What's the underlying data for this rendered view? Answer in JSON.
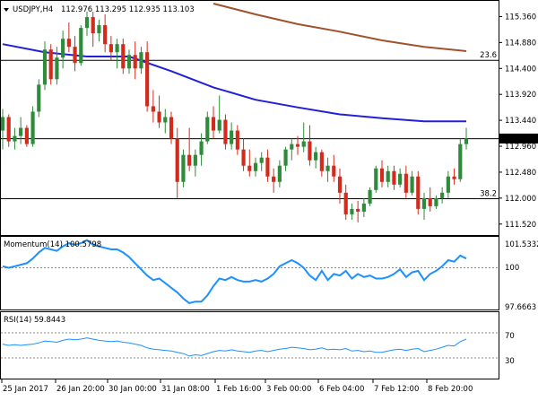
{
  "header": {
    "symbol": "USDJPY,H4",
    "ohlc": "112.976 113.295 112.935 113.103"
  },
  "colors": {
    "up": "#2e8b3a",
    "down": "#d42a1c",
    "ma_fast": "#2020d8",
    "ma_slow": "#a0522d",
    "indicator_line": "#1e90ff",
    "price_tag_bg": "#000000",
    "price_tag_text": "#ffffff"
  },
  "chart_data": [
    {
      "type": "candlestick",
      "title": "USDJPY,H4",
      "ylim": [
        111.35,
        115.6
      ],
      "y_ticks": [
        "115.360",
        "114.880",
        "114.400",
        "113.920",
        "113.440",
        "112.960",
        "112.480",
        "112.000",
        "111.520"
      ],
      "last_price": "113.103",
      "levels": [
        {
          "label": "23.6",
          "value": 114.55
        },
        {
          "label": "38.2",
          "value": 111.99
        }
      ],
      "reference_line": 113.1,
      "candles": [
        {
          "o": 113.25,
          "h": 113.65,
          "l": 112.9,
          "c": 113.5
        },
        {
          "o": 113.5,
          "h": 113.55,
          "l": 112.95,
          "c": 113.05
        },
        {
          "o": 113.05,
          "h": 113.3,
          "l": 112.9,
          "c": 113.15
        },
        {
          "o": 113.15,
          "h": 113.5,
          "l": 113.0,
          "c": 113.3
        },
        {
          "o": 113.3,
          "h": 113.35,
          "l": 112.95,
          "c": 113.0
        },
        {
          "o": 113.0,
          "h": 113.7,
          "l": 112.95,
          "c": 113.6
        },
        {
          "o": 113.6,
          "h": 114.2,
          "l": 113.5,
          "c": 114.1
        },
        {
          "o": 114.1,
          "h": 114.9,
          "l": 114.0,
          "c": 114.75
        },
        {
          "o": 114.75,
          "h": 114.85,
          "l": 114.1,
          "c": 114.2
        },
        {
          "o": 114.2,
          "h": 114.8,
          "l": 114.1,
          "c": 114.6
        },
        {
          "o": 114.6,
          "h": 115.1,
          "l": 114.4,
          "c": 114.95
        },
        {
          "o": 114.95,
          "h": 115.25,
          "l": 114.7,
          "c": 114.8
        },
        {
          "o": 114.8,
          "h": 115.0,
          "l": 114.35,
          "c": 114.5
        },
        {
          "o": 114.5,
          "h": 115.2,
          "l": 114.45,
          "c": 115.15
        },
        {
          "o": 115.15,
          "h": 115.45,
          "l": 115.0,
          "c": 115.35
        },
        {
          "o": 115.35,
          "h": 115.45,
          "l": 114.8,
          "c": 115.05
        },
        {
          "o": 115.05,
          "h": 115.3,
          "l": 114.9,
          "c": 115.2
        },
        {
          "o": 115.2,
          "h": 115.4,
          "l": 114.7,
          "c": 114.85
        },
        {
          "o": 114.85,
          "h": 115.0,
          "l": 114.55,
          "c": 114.7
        },
        {
          "o": 114.7,
          "h": 114.95,
          "l": 114.4,
          "c": 114.85
        },
        {
          "o": 114.85,
          "h": 114.95,
          "l": 114.3,
          "c": 114.4
        },
        {
          "o": 114.4,
          "h": 114.75,
          "l": 114.3,
          "c": 114.65
        },
        {
          "o": 114.65,
          "h": 114.9,
          "l": 114.2,
          "c": 114.4
        },
        {
          "o": 114.4,
          "h": 114.8,
          "l": 114.3,
          "c": 114.7
        },
        {
          "o": 114.7,
          "h": 114.9,
          "l": 113.6,
          "c": 113.7
        },
        {
          "o": 113.7,
          "h": 114.0,
          "l": 113.4,
          "c": 113.6
        },
        {
          "o": 113.6,
          "h": 113.9,
          "l": 113.3,
          "c": 113.4
        },
        {
          "o": 113.4,
          "h": 113.65,
          "l": 113.2,
          "c": 113.5
        },
        {
          "o": 113.5,
          "h": 113.6,
          "l": 113.0,
          "c": 113.1
        },
        {
          "o": 113.1,
          "h": 113.3,
          "l": 112.0,
          "c": 112.3
        },
        {
          "o": 112.3,
          "h": 112.9,
          "l": 112.2,
          "c": 112.8
        },
        {
          "o": 112.8,
          "h": 113.3,
          "l": 112.5,
          "c": 112.6
        },
        {
          "o": 112.6,
          "h": 112.9,
          "l": 112.4,
          "c": 112.8
        },
        {
          "o": 112.8,
          "h": 113.2,
          "l": 112.6,
          "c": 113.05
        },
        {
          "o": 113.05,
          "h": 113.6,
          "l": 113.0,
          "c": 113.5
        },
        {
          "o": 113.5,
          "h": 113.7,
          "l": 113.1,
          "c": 113.25
        },
        {
          "o": 113.25,
          "h": 113.9,
          "l": 113.2,
          "c": 113.45
        },
        {
          "o": 113.45,
          "h": 113.55,
          "l": 112.9,
          "c": 113.0
        },
        {
          "o": 113.0,
          "h": 113.4,
          "l": 112.9,
          "c": 113.25
        },
        {
          "o": 113.25,
          "h": 113.35,
          "l": 112.8,
          "c": 112.9
        },
        {
          "o": 112.9,
          "h": 113.1,
          "l": 112.5,
          "c": 112.6
        },
        {
          "o": 112.6,
          "h": 112.9,
          "l": 112.4,
          "c": 112.5
        },
        {
          "o": 112.5,
          "h": 112.75,
          "l": 112.4,
          "c": 112.65
        },
        {
          "o": 112.65,
          "h": 112.85,
          "l": 112.5,
          "c": 112.75
        },
        {
          "o": 112.75,
          "h": 112.9,
          "l": 112.3,
          "c": 112.4
        },
        {
          "o": 112.4,
          "h": 112.55,
          "l": 112.1,
          "c": 112.3
        },
        {
          "o": 112.3,
          "h": 112.7,
          "l": 112.2,
          "c": 112.6
        },
        {
          "o": 112.6,
          "h": 112.95,
          "l": 112.5,
          "c": 112.9
        },
        {
          "o": 112.9,
          "h": 113.1,
          "l": 112.7,
          "c": 113.0
        },
        {
          "o": 113.0,
          "h": 113.15,
          "l": 112.8,
          "c": 112.95
        },
        {
          "o": 112.95,
          "h": 113.4,
          "l": 112.85,
          "c": 113.05
        },
        {
          "o": 113.05,
          "h": 113.35,
          "l": 112.6,
          "c": 112.7
        },
        {
          "o": 112.7,
          "h": 112.95,
          "l": 112.55,
          "c": 112.85
        },
        {
          "o": 112.85,
          "h": 112.9,
          "l": 112.4,
          "c": 112.5
        },
        {
          "o": 112.5,
          "h": 112.75,
          "l": 112.3,
          "c": 112.6
        },
        {
          "o": 112.6,
          "h": 112.8,
          "l": 112.3,
          "c": 112.4
        },
        {
          "o": 112.4,
          "h": 112.55,
          "l": 111.9,
          "c": 112.1
        },
        {
          "o": 112.1,
          "h": 112.25,
          "l": 111.6,
          "c": 111.7
        },
        {
          "o": 111.7,
          "h": 111.9,
          "l": 111.6,
          "c": 111.8
        },
        {
          "o": 111.8,
          "h": 111.95,
          "l": 111.55,
          "c": 111.75
        },
        {
          "o": 111.75,
          "h": 112.0,
          "l": 111.65,
          "c": 111.9
        },
        {
          "o": 111.9,
          "h": 112.2,
          "l": 111.85,
          "c": 112.15
        },
        {
          "o": 112.15,
          "h": 112.6,
          "l": 112.1,
          "c": 112.55
        },
        {
          "o": 112.55,
          "h": 112.7,
          "l": 112.2,
          "c": 112.3
        },
        {
          "o": 112.3,
          "h": 112.6,
          "l": 112.2,
          "c": 112.5
        },
        {
          "o": 112.5,
          "h": 112.6,
          "l": 112.15,
          "c": 112.25
        },
        {
          "o": 112.25,
          "h": 112.55,
          "l": 112.2,
          "c": 112.45
        },
        {
          "o": 112.45,
          "h": 112.6,
          "l": 112.0,
          "c": 112.1
        },
        {
          "o": 112.1,
          "h": 112.5,
          "l": 112.05,
          "c": 112.4
        },
        {
          "o": 112.4,
          "h": 112.5,
          "l": 111.7,
          "c": 111.8
        },
        {
          "o": 111.8,
          "h": 112.1,
          "l": 111.6,
          "c": 112.0
        },
        {
          "o": 112.0,
          "h": 112.2,
          "l": 111.75,
          "c": 111.85
        },
        {
          "o": 111.85,
          "h": 112.05,
          "l": 111.8,
          "c": 112.0
        },
        {
          "o": 112.0,
          "h": 112.2,
          "l": 111.9,
          "c": 112.1
        },
        {
          "o": 112.1,
          "h": 112.5,
          "l": 112.0,
          "c": 112.4
        },
        {
          "o": 112.4,
          "h": 112.55,
          "l": 112.25,
          "c": 112.35
        },
        {
          "o": 112.35,
          "h": 113.1,
          "l": 112.3,
          "c": 113.0
        },
        {
          "o": 113.0,
          "h": 113.3,
          "l": 112.9,
          "c": 113.1
        }
      ],
      "ma_fast": [
        [
          0,
          114.85
        ],
        [
          7,
          114.7
        ],
        [
          14,
          114.62
        ],
        [
          21,
          114.62
        ],
        [
          28,
          114.35
        ],
        [
          35,
          114.05
        ],
        [
          42,
          113.82
        ],
        [
          49,
          113.68
        ],
        [
          56,
          113.55
        ],
        [
          63,
          113.48
        ],
        [
          70,
          113.42
        ],
        [
          77,
          113.42
        ]
      ],
      "ma_slow": [
        [
          35,
          115.6
        ],
        [
          42,
          115.4
        ],
        [
          49,
          115.22
        ],
        [
          56,
          115.08
        ],
        [
          63,
          114.92
        ],
        [
          70,
          114.8
        ],
        [
          77,
          114.72
        ]
      ]
    },
    {
      "type": "line",
      "title": "Momentum(14) 100.5798",
      "ylim": [
        97.4,
        101.9
      ],
      "y_ticks": [
        "101.5332",
        "100",
        "97.6663"
      ],
      "reference_line": 100,
      "values": [
        100.1,
        100.0,
        100.1,
        100.2,
        100.3,
        100.6,
        101.0,
        101.3,
        101.2,
        101.1,
        101.4,
        101.6,
        101.5,
        101.6,
        101.8,
        101.5,
        101.4,
        101.3,
        101.2,
        101.2,
        101.0,
        100.7,
        100.3,
        99.9,
        99.5,
        99.2,
        99.3,
        99.0,
        98.7,
        98.4,
        98.0,
        97.7,
        97.8,
        97.8,
        98.2,
        98.8,
        99.3,
        99.2,
        99.4,
        99.2,
        99.1,
        99.1,
        99.2,
        99.1,
        99.3,
        99.6,
        100.1,
        100.3,
        100.5,
        100.3,
        100.0,
        99.5,
        99.2,
        99.8,
        99.2,
        99.6,
        99.5,
        99.8,
        99.3,
        99.6,
        99.4,
        99.5,
        99.3,
        99.3,
        99.4,
        99.6,
        99.9,
        99.4,
        99.7,
        99.8,
        99.2,
        99.6,
        99.8,
        100.1,
        100.5,
        100.4,
        100.8,
        100.6
      ]
    },
    {
      "type": "line",
      "title": "RSI(14) 59.8443",
      "ylim": [
        0,
        100
      ],
      "y_ticks": [
        "70",
        "30"
      ],
      "levels": [
        70,
        30
      ],
      "values": [
        52,
        50,
        51,
        50,
        51,
        52,
        54,
        57,
        56,
        55,
        58,
        60,
        59,
        60,
        62,
        60,
        58,
        57,
        56,
        57,
        55,
        54,
        52,
        50,
        46,
        44,
        43,
        42,
        41,
        39,
        37,
        33,
        35,
        34,
        37,
        40,
        42,
        41,
        43,
        41,
        40,
        39,
        41,
        42,
        40,
        42,
        44,
        45,
        47,
        46,
        45,
        43,
        44,
        46,
        43,
        44,
        43,
        45,
        41,
        42,
        40,
        41,
        39,
        39,
        41,
        43,
        44,
        42,
        44,
        45,
        40,
        42,
        44,
        47,
        50,
        49,
        56,
        60
      ]
    }
  ],
  "x_labels": [
    "25 Jan 2017",
    "26 Jan 20:00",
    "30 Jan 00:00",
    "31 Jan 08:00",
    "1 Feb 16:00",
    "3 Feb 00:00",
    "6 Feb 04:00",
    "7 Feb 12:00",
    "8 Feb 20:00"
  ]
}
